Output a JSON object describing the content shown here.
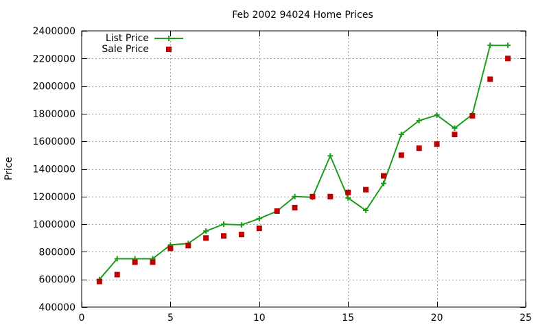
{
  "chart_data": {
    "type": "line",
    "title": "Feb 2002 94024 Home Prices",
    "xlabel": "",
    "ylabel": "Price",
    "xlim": [
      0,
      25
    ],
    "ylim": [
      400000,
      2400000
    ],
    "x_ticks": [
      0,
      5,
      10,
      15,
      20,
      25
    ],
    "y_ticks": [
      400000,
      600000,
      800000,
      1000000,
      1200000,
      1400000,
      1600000,
      1800000,
      2000000,
      2200000,
      2400000
    ],
    "grid": true,
    "legend_position": "top-left",
    "series": [
      {
        "name": "List Price",
        "style": "line-with-plus-markers",
        "color": "#1a9e1a",
        "x": [
          1,
          2,
          3,
          4,
          5,
          6,
          7,
          8,
          9,
          10,
          11,
          12,
          13,
          14,
          15,
          16,
          17,
          18,
          19,
          20,
          21,
          22,
          23,
          24
        ],
        "values": [
          600000,
          750000,
          750000,
          750000,
          850000,
          860000,
          950000,
          1000000,
          995000,
          1040000,
          1095000,
          1200000,
          1195000,
          1495000,
          1190000,
          1100000,
          1295000,
          1650000,
          1750000,
          1790000,
          1695000,
          1795000,
          2295000,
          2295000
        ]
      },
      {
        "name": "Sale Price",
        "style": "square-markers",
        "color": "#c00000",
        "x": [
          1,
          2,
          3,
          4,
          5,
          6,
          7,
          8,
          9,
          10,
          11,
          12,
          13,
          14,
          15,
          16,
          17,
          18,
          19,
          20,
          21,
          22,
          23,
          24
        ],
        "values": [
          585000,
          635000,
          725000,
          725000,
          825000,
          845000,
          900000,
          915000,
          925000,
          970000,
          1095000,
          1120000,
          1200000,
          1200000,
          1230000,
          1250000,
          1350000,
          1500000,
          1550000,
          1580000,
          1650000,
          1785000,
          2050000,
          2200000
        ]
      }
    ]
  }
}
